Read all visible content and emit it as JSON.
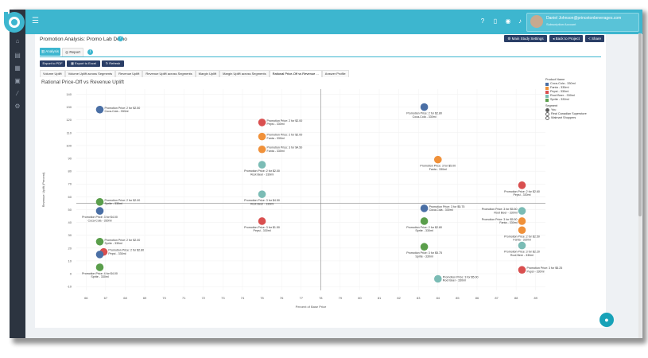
{
  "header": {
    "user_name": "Daniel Johnson@princetonbeverages.com",
    "account_type": "Subscription Account"
  },
  "page": {
    "title": "Promotion Analysis: Promo Lab Demo",
    "buttons": {
      "study_settings": "Main Study Settings",
      "back_to_project": "Back to Project",
      "share": "Share"
    }
  },
  "tabs": [
    {
      "label": "Analysis",
      "active": true
    },
    {
      "label": "Report",
      "active": false
    }
  ],
  "actions": {
    "export_pdf": "Export to PDF",
    "export_excel": "Export to Excel",
    "refresh": "Refresh"
  },
  "subtabs": [
    {
      "label": "Volume Uplift",
      "active": false
    },
    {
      "label": "Volume Uplift across Segments",
      "active": false
    },
    {
      "label": "Revenue Uplift",
      "active": false
    },
    {
      "label": "Revenue Uplift across Segments",
      "active": false
    },
    {
      "label": "Margin Uplift",
      "active": false
    },
    {
      "label": "Margin Uplift across Segments",
      "active": false
    },
    {
      "label": "Rational Price-Off vs Revenue ...",
      "active": true
    },
    {
      "label": "Answer Profile",
      "active": false
    }
  ],
  "legend": {
    "products_title": "Product Name",
    "products": [
      {
        "name": "Coca-Cola - 330ml",
        "color": "#4a6fa5"
      },
      {
        "name": "Fanta - 330ml",
        "color": "#f0913a"
      },
      {
        "name": "Pepsi - 330ml",
        "color": "#d94f4f"
      },
      {
        "name": "Root Beer - 330ml",
        "color": "#7bbcb5"
      },
      {
        "name": "Sprite - 330ml",
        "color": "#5a9e4b"
      }
    ],
    "segment_title": "Segment",
    "segments": [
      {
        "name": "You",
        "selected": true
      },
      {
        "name": "Real Canadian Superstore",
        "selected": false
      },
      {
        "name": "Walmart Shoppers",
        "selected": false
      }
    ]
  },
  "chart_data": {
    "type": "scatter",
    "title": "Rational Price-Off vs Revenue Uplift",
    "xlabel": "Percent of Base Price",
    "ylabel": "Revenue Uplift (Percent)",
    "xlim": [
      65.5,
      89.5
    ],
    "ylim": [
      -13,
      144
    ],
    "xticks": [
      66,
      67,
      68,
      69,
      70,
      71,
      72,
      73,
      74,
      75,
      76,
      77,
      78,
      79,
      80,
      81,
      82,
      83,
      84,
      85,
      86,
      87,
      88,
      89
    ],
    "yticks": [
      -10,
      0,
      10,
      20,
      30,
      40,
      50,
      60,
      70,
      80,
      90,
      100,
      110,
      120,
      130,
      140
    ],
    "vline": 78,
    "hline": 55,
    "grid": true,
    "points": [
      {
        "product": "Coca-Cola - 330ml",
        "label": "Promotion Price: 2 for $2.50",
        "x": 66.7,
        "y": 128,
        "color": "#4a6fa5",
        "label_pos": "right"
      },
      {
        "product": "Coca-Cola - 330ml",
        "label": "Promotion Price: 2 for $2.80",
        "x": 83.3,
        "y": 130,
        "color": "#4a6fa5",
        "label_pos": "below"
      },
      {
        "product": "Pepsi - 330ml",
        "label": "Promotion Price: 2 for $2.00",
        "x": 75.0,
        "y": 118,
        "color": "#d94f4f",
        "label_pos": "right"
      },
      {
        "product": "Fanta - 330ml",
        "label": "Promotion Price: 2 for $2.00",
        "x": 75.0,
        "y": 107,
        "color": "#f0913a",
        "label_pos": "right"
      },
      {
        "product": "Fanta - 330ml",
        "label": "Promotion Price: 3 for $4.50",
        "x": 75.0,
        "y": 97,
        "color": "#f0913a",
        "label_pos": "right"
      },
      {
        "product": "Fanta - 330ml",
        "label": "Promotion Price: 3 for $5.00",
        "x": 84.0,
        "y": 89,
        "color": "#f0913a",
        "label_pos": "below"
      },
      {
        "product": "Root Beer - 330ml",
        "label": "Promotion Price: 2 for $2.00",
        "x": 75.0,
        "y": 85,
        "color": "#7bbcb5",
        "label_pos": "below"
      },
      {
        "product": "Pepsi - 330ml",
        "label": "Promotion Price: 2 for $2.60",
        "x": 88.3,
        "y": 69,
        "color": "#d94f4f",
        "label_pos": "below"
      },
      {
        "product": "Root Beer - 330ml",
        "label": "Promotion Price: 3 for $4.50",
        "x": 75.0,
        "y": 62,
        "color": "#7bbcb5",
        "label_pos": "below"
      },
      {
        "product": "Sprite - 330ml",
        "label": "Promotion Price: 2 for $2.00",
        "x": 66.7,
        "y": 56,
        "color": "#5a9e4b",
        "label_pos": "right"
      },
      {
        "product": "Coca-Cola - 330ml",
        "label": "Promotion Price: 3 for $5.75",
        "x": 83.3,
        "y": 51,
        "color": "#4a6fa5",
        "label_pos": "right"
      },
      {
        "product": "Coca-Cola - 330ml",
        "label": "Promotion Price: 3 for $4.00",
        "x": 66.7,
        "y": 49,
        "color": "#4a6fa5",
        "label_pos": "below"
      },
      {
        "product": "Root Beer - 330ml",
        "label": "Promotion Price: 3 for $5.50",
        "x": 88.3,
        "y": 49,
        "color": "#7bbcb5",
        "label_pos": "left"
      },
      {
        "product": "Pepsi - 330ml",
        "label": "Promotion Price: 3 for $1.50",
        "x": 75.0,
        "y": 41,
        "color": "#d94f4f",
        "label_pos": "below"
      },
      {
        "product": "Sprite - 330ml",
        "label": "Promotion Price: 2 for $2.80",
        "x": 83.3,
        "y": 41,
        "color": "#5a9e4b",
        "label_pos": "below"
      },
      {
        "product": "Fanta - 330ml",
        "label": "Promotion Price: 3 for $5.50",
        "x": 88.3,
        "y": 41,
        "color": "#f0913a",
        "label_pos": "left"
      },
      {
        "product": "Fanta - 330ml",
        "label": "Promotion Price: 2 for $2.50",
        "x": 88.3,
        "y": 34,
        "color": "#f0913a",
        "label_pos": "below"
      },
      {
        "product": "Sprite - 330ml",
        "label": "Promotion Price: 2 for $2.00",
        "x": 66.7,
        "y": 25,
        "color": "#5a9e4b",
        "label_pos": "right"
      },
      {
        "product": "Sprite - 330ml",
        "label": "Promotion Price: 3 for $5.75",
        "x": 83.3,
        "y": 21,
        "color": "#5a9e4b",
        "label_pos": "below"
      },
      {
        "product": "Root Beer - 330ml",
        "label": "Promotion Price: 3 for $2.20",
        "x": 88.3,
        "y": 22,
        "color": "#7bbcb5",
        "label_pos": "below"
      },
      {
        "product": "Pepsi - 330ml",
        "label": "Promotion Price: 2 for $2.80",
        "x": 66.9,
        "y": 17,
        "color": "#d94f4f",
        "label_pos": "right"
      },
      {
        "product": "Coca-Cola - 330ml",
        "label": "",
        "x": 66.7,
        "y": 15,
        "color": "#4a6fa5",
        "label_pos": "none"
      },
      {
        "product": "Sprite - 330ml",
        "label": "Promotion Price: 4 for $4.00",
        "x": 66.7,
        "y": 5,
        "color": "#5a9e4b",
        "label_pos": "below"
      },
      {
        "product": "Pepsi - 330ml",
        "label": "Promotion Price: 3 for $5.25",
        "x": 88.3,
        "y": 3,
        "color": "#d94f4f",
        "label_pos": "right"
      },
      {
        "product": "Root Beer - 330ml",
        "label": "Promotion Price: 3 for $5.00",
        "x": 84.0,
        "y": -4,
        "color": "#7bbcb5",
        "label_pos": "right"
      }
    ]
  }
}
